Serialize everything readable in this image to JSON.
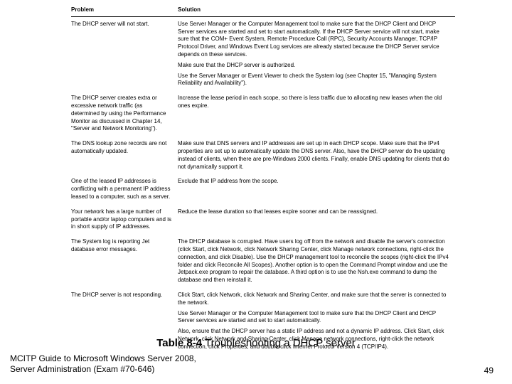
{
  "table": {
    "headers": {
      "problem": "Problem",
      "solution": "Solution"
    },
    "rows": [
      {
        "problem": "The DHCP server will not start.",
        "solution": [
          "Use Server Manager or the Computer Management tool to make sure that the DHCP Client and DHCP Server services are started and set to start automatically. If the DHCP Server service will not start, make sure that the COM+ Event System, Remote Procedure Call (RPC), Security Accounts Manager, TCP/IP Protocol Driver, and Windows Event Log services are already started because the DHCP Server service depends on these services.",
          "Make sure that the DHCP server is authorized.",
          "Use the Server Manager or Event Viewer to check the System log (see Chapter 15, \"Managing System Reliability and Availability\")."
        ]
      },
      {
        "problem": "The DHCP server creates extra or excessive network traffic (as determined by using the Performance Monitor as discussed in Chapter 14, \"Server and Network Monitoring\").",
        "solution": [
          "Increase the lease period in each scope, so there is less traffic due to allocating new leases when the old ones expire."
        ]
      },
      {
        "problem": "The DNS lookup zone records are not automatically updated.",
        "solution": [
          "Make sure that DNS servers and IP addresses are set up in each DHCP scope. Make sure that the IPv4 properties are set up to automatically update the DNS server. Also, have the DHCP server do the updating instead of clients, when there are pre-Windows 2000 clients. Finally, enable DNS updating for clients that do not dynamically support it."
        ]
      },
      {
        "problem": "One of the leased IP addresses is conflicting with a permanent IP address leased to a computer, such as a server.",
        "solution": [
          "Exclude that IP address from the scope."
        ]
      },
      {
        "problem": "Your network has a large number of portable and/or laptop computers and is in short supply of IP addresses.",
        "solution": [
          "Reduce the lease duration so that leases expire sooner and can be reassigned."
        ]
      },
      {
        "problem": "The System log is reporting Jet database error messages.",
        "solution": [
          "The DHCP database is corrupted. Have users log off from the network and disable the server's connection (click Start, click Network, click Network Sharing Center, click Manage network connections, right-click the connection, and click Disable). Use the DHCP management tool to reconcile the scopes (right-click the IPv4 folder and click Reconcile All Scopes). Another option is to open the Command Prompt window and use the Jetpack.exe program to repair the database. A third option is to use the Nsh.exe command to dump the database and then reinstall it."
        ]
      },
      {
        "problem": "The DHCP server is not responding.",
        "solution": [
          "Click Start, click Network, click Network and Sharing Center, and make sure that the server is connected to the network.",
          "Use Server Manager or the Computer Management tool to make sure that the DHCP Client and DHCP Server services are started and set to start automatically.",
          "Also, ensure that the DHCP server has a static IP address and not a dynamic IP address. Click Start, click Network, click Network and Sharing Center, click Manage network connections, right-click the network connection, click Properties, and double-click Internet Protocol Version 4 (TCP/IP4)."
        ]
      }
    ]
  },
  "caption": {
    "label": "Table 8-4",
    "text": " Troubleshooting a DHCP server"
  },
  "footer": {
    "source_line1": "MCITP Guide to Microsoft Windows Server 2008,",
    "source_line2": "Server Administration (Exam #70-646)",
    "page": "49"
  }
}
